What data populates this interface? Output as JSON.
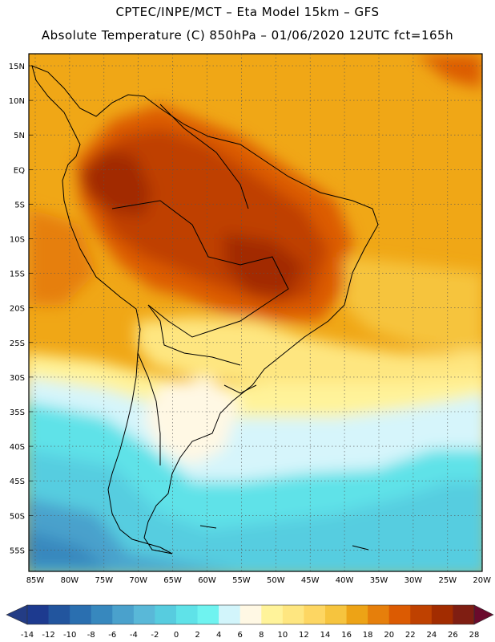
{
  "header": {
    "line1": "CPTEC/INPE/MCT –  Eta Model 15km – GFS",
    "line2": "Absolute Temperature (C) 850hPa – 01/06/2020 12UTC fct=165h"
  },
  "map": {
    "lat_labels": [
      "15N",
      "10N",
      "5N",
      "EQ",
      "5S",
      "10S",
      "15S",
      "20S",
      "25S",
      "30S",
      "35S",
      "40S",
      "45S",
      "50S",
      "55S"
    ],
    "lon_labels": [
      "85W",
      "80W",
      "75W",
      "70W",
      "65W",
      "60W",
      "55W",
      "50W",
      "45W",
      "40W",
      "35W",
      "30W",
      "25W",
      "20W"
    ]
  },
  "legend": {
    "labels": [
      "-14",
      "-12",
      "-10",
      "-8",
      "-6",
      "-4",
      "-2",
      "0",
      "2",
      "4",
      "6",
      "8",
      "10",
      "12",
      "14",
      "16",
      "18",
      "20",
      "22",
      "24",
      "26",
      "28"
    ],
    "colors": [
      "#1d3a8f",
      "#22559e",
      "#2a6fb0",
      "#3788be",
      "#4aa1cc",
      "#59b8d8",
      "#57ccdf",
      "#5fe2e8",
      "#6ff3f0",
      "#d2f5fb",
      "#fff8e4",
      "#fff39a",
      "#fee680",
      "#fdd662",
      "#f6c43e",
      "#eda316",
      "#e67f0b",
      "#dc5b02",
      "#bf4100",
      "#a22c00",
      "#7f1e12"
    ],
    "arrow_left_color": "#233c85",
    "arrow_right_color": "#6a0a2c"
  }
}
